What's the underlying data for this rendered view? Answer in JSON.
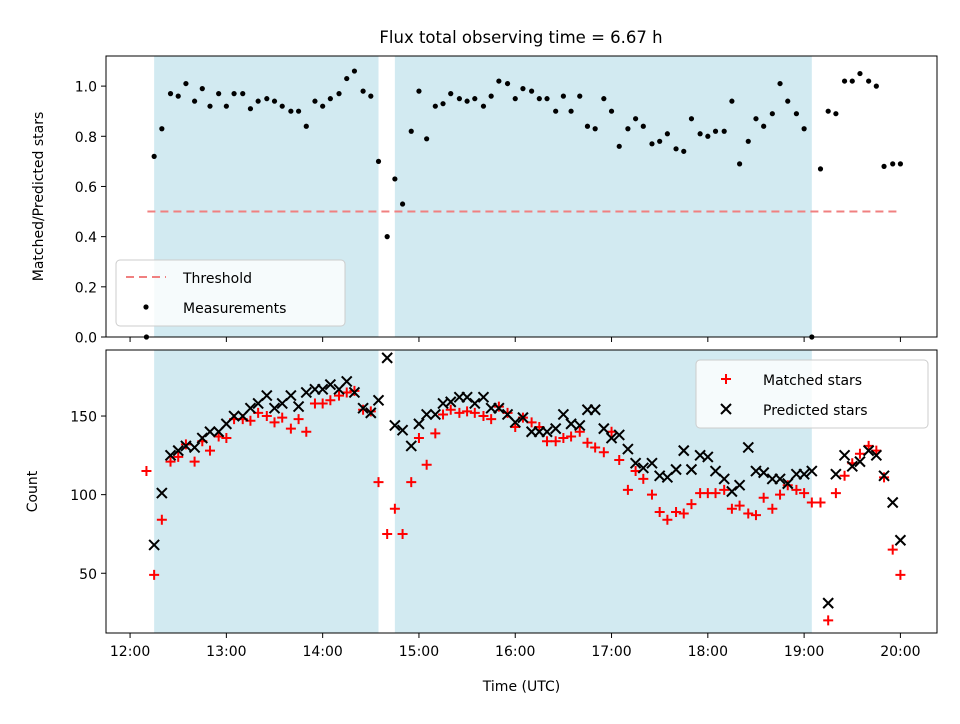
{
  "figure_title": "Flux total observing time = 6.67 h",
  "colors": {
    "shade": "#add8e6",
    "threshold": "#f08080",
    "measurements": "#000000",
    "matched": "#ff0000",
    "predicted": "#000000"
  },
  "chart_data": [
    {
      "type": "scatter",
      "panel": "top",
      "title": "Flux total observing time = 6.67 h",
      "xlabel": "",
      "ylabel": "Matched/Predicted stars",
      "xlim": [
        11.75,
        20.38
      ],
      "ylim": [
        0.0,
        1.12
      ],
      "yticks": [
        "0.0",
        "0.2",
        "0.4",
        "0.6",
        "0.8",
        "1.0"
      ],
      "ytick_values": [
        0.0,
        0.2,
        0.4,
        0.6,
        0.8,
        1.0
      ],
      "shaded_intervals": [
        [
          12.25,
          14.58
        ],
        [
          14.75,
          19.08
        ]
      ],
      "legend": {
        "placement": "lower-left",
        "entries": [
          "Threshold",
          "Measurements"
        ]
      },
      "threshold": {
        "name": "Threshold",
        "value": 0.5,
        "x": [
          12.18,
          20.0
        ]
      },
      "series": [
        {
          "name": "Measurements",
          "x": [
            12.17,
            12.25,
            12.33,
            12.42,
            12.5,
            12.58,
            12.67,
            12.75,
            12.83,
            12.92,
            13.0,
            13.08,
            13.17,
            13.25,
            13.33,
            13.42,
            13.5,
            13.58,
            13.67,
            13.75,
            13.83,
            13.92,
            14.0,
            14.08,
            14.17,
            14.25,
            14.33,
            14.42,
            14.5,
            14.58,
            14.67,
            14.75,
            14.83,
            14.92,
            15.0,
            15.08,
            15.17,
            15.25,
            15.33,
            15.42,
            15.5,
            15.58,
            15.67,
            15.75,
            15.83,
            15.92,
            16.0,
            16.08,
            16.17,
            16.25,
            16.33,
            16.42,
            16.5,
            16.58,
            16.67,
            16.75,
            16.83,
            16.92,
            17.0,
            17.08,
            17.17,
            17.25,
            17.33,
            17.42,
            17.5,
            17.58,
            17.67,
            17.75,
            17.83,
            17.92,
            18.0,
            18.08,
            18.17,
            18.25,
            18.33,
            18.42,
            18.5,
            18.58,
            18.67,
            18.75,
            18.83,
            18.92,
            19.0,
            19.08,
            19.17,
            19.25,
            19.33,
            19.42,
            19.5,
            19.58,
            19.67,
            19.75,
            19.83,
            19.92,
            20.0
          ],
          "y": [
            0.0,
            0.72,
            0.83,
            0.97,
            0.96,
            1.01,
            0.94,
            0.99,
            0.92,
            0.97,
            0.92,
            0.97,
            0.97,
            0.91,
            0.94,
            0.95,
            0.94,
            0.92,
            0.9,
            0.9,
            0.84,
            0.94,
            0.92,
            0.95,
            0.97,
            1.03,
            1.06,
            0.98,
            0.96,
            0.7,
            0.4,
            0.63,
            0.53,
            0.82,
            0.98,
            0.79,
            0.92,
            0.93,
            0.97,
            0.95,
            0.94,
            0.95,
            0.92,
            0.96,
            1.02,
            1.01,
            0.95,
            0.99,
            0.98,
            0.95,
            0.95,
            0.9,
            0.96,
            0.9,
            0.96,
            0.84,
            0.83,
            0.95,
            0.9,
            0.76,
            0.83,
            0.87,
            0.84,
            0.77,
            0.78,
            0.81,
            0.75,
            0.74,
            0.87,
            0.81,
            0.8,
            0.82,
            0.82,
            0.94,
            0.69,
            0.78,
            0.87,
            0.84,
            0.89,
            1.01,
            0.94,
            0.89,
            0.83,
            0.0,
            0.67,
            0.9,
            0.89,
            1.02,
            1.02,
            1.05,
            1.02,
            1.0,
            0.68,
            0.69,
            0.69
          ]
        }
      ]
    },
    {
      "type": "scatter",
      "panel": "bottom",
      "xlabel": "Time (UTC)",
      "ylabel": "Count",
      "xlim": [
        11.75,
        20.38
      ],
      "ylim": [
        12,
        192
      ],
      "xticks": [
        "12:00",
        "13:00",
        "14:00",
        "15:00",
        "16:00",
        "17:00",
        "18:00",
        "19:00",
        "20:00"
      ],
      "xtick_values": [
        12,
        13,
        14,
        15,
        16,
        17,
        18,
        19,
        20
      ],
      "yticks": [
        "50",
        "100",
        "150"
      ],
      "ytick_values": [
        50,
        100,
        150
      ],
      "shaded_intervals": [
        [
          12.25,
          14.58
        ],
        [
          14.75,
          19.08
        ]
      ],
      "legend": {
        "placement": "upper-right",
        "entries": [
          "Matched stars",
          "Predicted stars"
        ]
      },
      "series": [
        {
          "name": "Matched stars",
          "marker": "plus",
          "x": [
            12.17,
            12.25,
            12.33,
            12.42,
            12.5,
            12.58,
            12.67,
            12.75,
            12.83,
            12.92,
            13.0,
            13.08,
            13.17,
            13.25,
            13.33,
            13.42,
            13.5,
            13.58,
            13.67,
            13.75,
            13.83,
            13.92,
            14.0,
            14.08,
            14.17,
            14.25,
            14.33,
            14.42,
            14.5,
            14.58,
            14.67,
            14.75,
            14.83,
            14.92,
            15.0,
            15.08,
            15.17,
            15.25,
            15.33,
            15.42,
            15.5,
            15.58,
            15.67,
            15.75,
            15.83,
            15.92,
            16.0,
            16.08,
            16.17,
            16.25,
            16.33,
            16.42,
            16.5,
            16.58,
            16.67,
            16.75,
            16.83,
            16.92,
            17.0,
            17.08,
            17.17,
            17.25,
            17.33,
            17.42,
            17.5,
            17.58,
            17.67,
            17.75,
            17.83,
            17.92,
            18.0,
            18.08,
            18.17,
            18.25,
            18.33,
            18.42,
            18.5,
            18.58,
            18.67,
            18.75,
            18.83,
            18.92,
            19.0,
            19.08,
            19.17,
            19.25,
            19.33,
            19.42,
            19.5,
            19.58,
            19.67,
            19.75,
            19.83,
            19.92,
            20.0
          ],
          "y": [
            115,
            49,
            84,
            121,
            124,
            132,
            121,
            134,
            128,
            137,
            136,
            148,
            148,
            147,
            152,
            150,
            146,
            149,
            142,
            148,
            140,
            158,
            158,
            160,
            163,
            165,
            166,
            154,
            153,
            108,
            75,
            91,
            75,
            108,
            136,
            119,
            139,
            151,
            154,
            152,
            153,
            152,
            150,
            148,
            156,
            152,
            143,
            149,
            146,
            143,
            134,
            134,
            136,
            137,
            140,
            133,
            130,
            127,
            140,
            122,
            103,
            115,
            110,
            100,
            89,
            84,
            89,
            88,
            94,
            101,
            101,
            101,
            103,
            91,
            93,
            88,
            87,
            98,
            91,
            100,
            106,
            103,
            101,
            95,
            95,
            20,
            101,
            112,
            120,
            126,
            131,
            128,
            111,
            65,
            49
          ]
        },
        {
          "name": "Predicted stars",
          "marker": "x",
          "x": [
            12.25,
            12.33,
            12.42,
            12.5,
            12.58,
            12.67,
            12.75,
            12.83,
            12.92,
            13.0,
            13.08,
            13.17,
            13.25,
            13.33,
            13.42,
            13.5,
            13.58,
            13.67,
            13.75,
            13.83,
            13.92,
            14.0,
            14.08,
            14.17,
            14.25,
            14.33,
            14.42,
            14.5,
            14.58,
            14.67,
            14.75,
            14.83,
            14.92,
            15.0,
            15.08,
            15.17,
            15.25,
            15.33,
            15.42,
            15.5,
            15.58,
            15.67,
            15.75,
            15.83,
            15.92,
            16.0,
            16.08,
            16.17,
            16.25,
            16.33,
            16.42,
            16.5,
            16.58,
            16.67,
            16.75,
            16.83,
            16.92,
            17.0,
            17.08,
            17.17,
            17.25,
            17.33,
            17.42,
            17.5,
            17.58,
            17.67,
            17.75,
            17.83,
            17.92,
            18.0,
            18.08,
            18.17,
            18.25,
            18.33,
            18.42,
            18.5,
            18.58,
            18.67,
            18.75,
            18.83,
            18.92,
            19.0,
            19.08,
            19.25,
            19.33,
            19.42,
            19.5,
            19.58,
            19.67,
            19.75,
            19.83,
            19.92,
            20.0
          ],
          "y": [
            68,
            101,
            125,
            128,
            131,
            130,
            136,
            140,
            140,
            145,
            150,
            150,
            155,
            158,
            163,
            155,
            158,
            163,
            156,
            165,
            167,
            167,
            170,
            167,
            172,
            165,
            155,
            152,
            160,
            187,
            144,
            141,
            131,
            145,
            151,
            151,
            158,
            159,
            162,
            162,
            158,
            162,
            155,
            155,
            151,
            146,
            149,
            140,
            140,
            140,
            142,
            151,
            145,
            144,
            154,
            154,
            142,
            136,
            138,
            129,
            120,
            117,
            120,
            112,
            111,
            116,
            128,
            116,
            125,
            124,
            115,
            110,
            102,
            106,
            130,
            115,
            114,
            110,
            110,
            107,
            113,
            113,
            115,
            31,
            113,
            125,
            118,
            121,
            128,
            125,
            112,
            95,
            71
          ]
        }
      ]
    }
  ]
}
